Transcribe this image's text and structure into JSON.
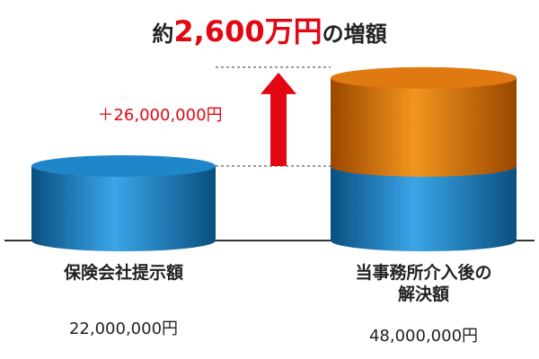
{
  "chart_data": {
    "type": "cylinder-stack",
    "title": [
      "約",
      "2,600万円",
      "の増額"
    ],
    "annotation": "＋26,000,000円",
    "categories": [
      "保険会社提示額",
      "当事務所介入後の解決額"
    ],
    "totals": [
      22000000,
      48000000
    ],
    "total_labels": [
      "22,000,000円",
      "48,000,000円"
    ],
    "series": [
      {
        "color": "#1f86c9",
        "values": [
          22000000,
          22000000
        ]
      },
      {
        "color": "#e07a10",
        "values": [
          null,
          26000000
        ]
      }
    ],
    "ylim": [
      0,
      71000000
    ]
  }
}
